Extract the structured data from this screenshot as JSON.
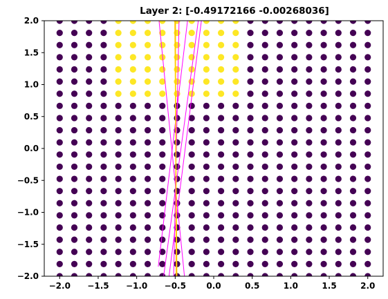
{
  "chart_data": {
    "type": "scatter",
    "title": "Layer 2: [-0.49172166 -0.00268036]",
    "xlabel": "",
    "ylabel": "",
    "xlim": [
      -2.2,
      2.2
    ],
    "ylim": [
      -2.0,
      2.0
    ],
    "grid": false,
    "xticks": [
      -2.0,
      -1.5,
      -1.0,
      -0.5,
      0.0,
      0.5,
      1.0,
      1.5,
      2.0
    ],
    "yticks": [
      -2.0,
      -1.5,
      -1.0,
      -0.5,
      0.0,
      0.5,
      1.0,
      1.5,
      2.0
    ],
    "xtick_labels": [
      "−2.0",
      "−1.5",
      "−1.0",
      "−0.5",
      "0.0",
      "0.5",
      "1.0",
      "1.5",
      "2.0"
    ],
    "ytick_labels": [
      "−2.0",
      "−1.5",
      "−1.0",
      "−0.5",
      "0.0",
      "0.5",
      "1.0",
      "1.5",
      "2.0"
    ],
    "grid_points": {
      "x_start": -2.0,
      "x_end": 2.0,
      "x_count": 22,
      "y_start": -2.0,
      "y_end": 2.0,
      "y_count": 22
    },
    "class_colors": {
      "0": "#440154",
      "1": "#fde725"
    },
    "class1_region": {
      "x_min": -1.4,
      "x_max": 0.4,
      "y_min": 0.7,
      "y_max": 2.0
    },
    "boundary_lines": [
      {
        "color": "#ff00ff",
        "points": [
          [
            -0.71,
            2.0
          ],
          [
            -0.38,
            -2.0
          ]
        ]
      },
      {
        "color": "#ff00ff",
        "points": [
          [
            -0.65,
            -2.0
          ],
          [
            -0.2,
            2.0
          ]
        ]
      },
      {
        "color": "#ff00ff",
        "points": [
          [
            -0.58,
            -2.0
          ],
          [
            -0.16,
            2.0
          ]
        ]
      },
      {
        "color": "#ff00ff",
        "points": [
          [
            -0.72,
            -1.85
          ],
          [
            -0.34,
            2.0
          ]
        ]
      },
      {
        "color": "#ff00ff",
        "points": [
          [
            -0.45,
            2.0
          ],
          [
            -0.52,
            -2.0
          ]
        ]
      },
      {
        "color": "#ffa500",
        "points": [
          [
            -0.497,
            2.0
          ],
          [
            -0.487,
            -2.0
          ]
        ]
      },
      {
        "color": "#ffd700",
        "points": [
          [
            -0.505,
            2.0
          ],
          [
            -0.478,
            -2.0
          ]
        ]
      }
    ]
  }
}
